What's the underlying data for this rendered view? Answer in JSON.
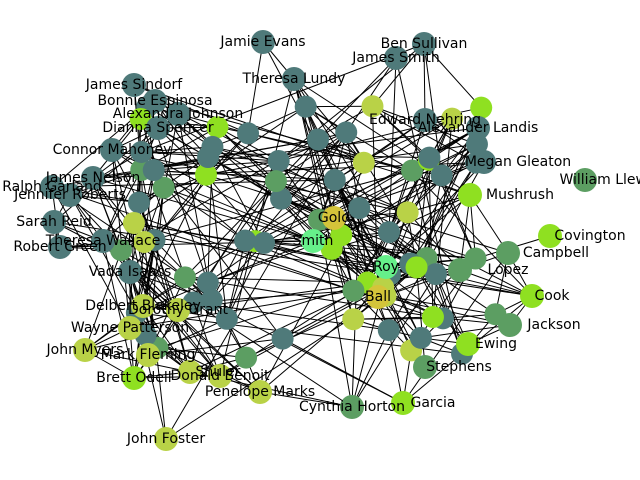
{
  "colors": {
    "teal": "#4f7a7a",
    "green": "#5c9e62",
    "lime": "#8fe021",
    "olive": "#b9d247",
    "gold": "#d4c43a",
    "mint": "#66f08a"
  },
  "nodes": [
    {
      "id": "jamie-evans",
      "label": "Jamie Evans",
      "color": "teal"
    },
    {
      "id": "ben-sullivan",
      "label": "Ben Sullivan",
      "color": "teal"
    },
    {
      "id": "james-smith",
      "label": "James Smith",
      "color": "teal"
    },
    {
      "id": "james-sindorf",
      "label": "James Sindorf",
      "color": "teal"
    },
    {
      "id": "theresa",
      "label": "Theresa Lundy",
      "color": "teal"
    },
    {
      "id": "bonnie",
      "label": "Bonnie Espinosa",
      "color": "teal"
    },
    {
      "id": "alexandra",
      "label": "Alexandra Johnson",
      "color": "teal"
    },
    {
      "id": "dianna",
      "label": "Dianna Spencer",
      "color": "teal"
    },
    {
      "id": "connor",
      "label": "Connor Mahoney",
      "color": "teal"
    },
    {
      "id": "ralph",
      "label": "Ralph Garland",
      "color": "teal"
    },
    {
      "id": "jennifer",
      "label": "Jennifer Roberts",
      "color": "teal"
    },
    {
      "id": "james-n",
      "label": "James Nelson",
      "color": "teal"
    },
    {
      "id": "sarah",
      "label": "Sarah Reid",
      "color": "teal"
    },
    {
      "id": "robert",
      "label": "Robert Green",
      "color": "teal"
    },
    {
      "id": "theresa-w",
      "label": "Theresa Wallace",
      "color": "teal"
    },
    {
      "id": "vada",
      "label": "Vada Isaacs",
      "color": "teal"
    },
    {
      "id": "alexander",
      "label": "Alexander Landis",
      "color": "teal"
    },
    {
      "id": "edward",
      "label": "Edward Nehring",
      "color": "teal"
    },
    {
      "id": "gleaton",
      "label": "Megan Gleaton",
      "color": "teal"
    },
    {
      "id": "william",
      "label": "William Llewellyn",
      "color": "green"
    },
    {
      "id": "mushrush",
      "label": "Mushrush",
      "color": "lime"
    },
    {
      "id": "covington",
      "label": "Covington",
      "color": "lime"
    },
    {
      "id": "campbell",
      "label": "Campbell",
      "color": "green"
    },
    {
      "id": "lopez",
      "label": "Lopez",
      "color": "green"
    },
    {
      "id": "cook",
      "label": "Cook",
      "color": "lime"
    },
    {
      "id": "jackson",
      "label": "Jackson",
      "color": "green"
    },
    {
      "id": "ewing",
      "label": "Ewing",
      "color": "lime"
    },
    {
      "id": "stephens",
      "label": "Stephens",
      "color": "green"
    },
    {
      "id": "garcia",
      "label": "Garcia",
      "color": "lime"
    },
    {
      "id": "cynthia",
      "label": "Cynthia Horton",
      "color": "green"
    },
    {
      "id": "penelope",
      "label": "Penelope Marks",
      "color": "olive"
    },
    {
      "id": "donald",
      "label": "Donald Benoit",
      "color": "olive"
    },
    {
      "id": "john-foster",
      "label": "John Foster",
      "color": "olive"
    },
    {
      "id": "brett",
      "label": "Brett Odell",
      "color": "lime"
    },
    {
      "id": "john-m",
      "label": "John Myers",
      "color": "olive"
    },
    {
      "id": "wayne",
      "label": "Wayne Patterson",
      "color": "olive"
    },
    {
      "id": "mark",
      "label": "Mark Fleming",
      "color": "olive"
    },
    {
      "id": "delbert",
      "label": "Delbert Blakeley",
      "color": "olive"
    },
    {
      "id": "dorothy",
      "label": "Dorothy Grant",
      "color": "olive"
    },
    {
      "id": "shuler",
      "label": "Shuler",
      "color": "olive"
    },
    {
      "id": "center-a",
      "label": "Gold",
      "color": "gold"
    },
    {
      "id": "center-b",
      "label": "Ball",
      "color": "gold"
    },
    {
      "id": "center-c",
      "label": "Smith",
      "color": "mint"
    },
    {
      "id": "center-d",
      "label": "Roy",
      "color": "mint"
    }
  ]
}
